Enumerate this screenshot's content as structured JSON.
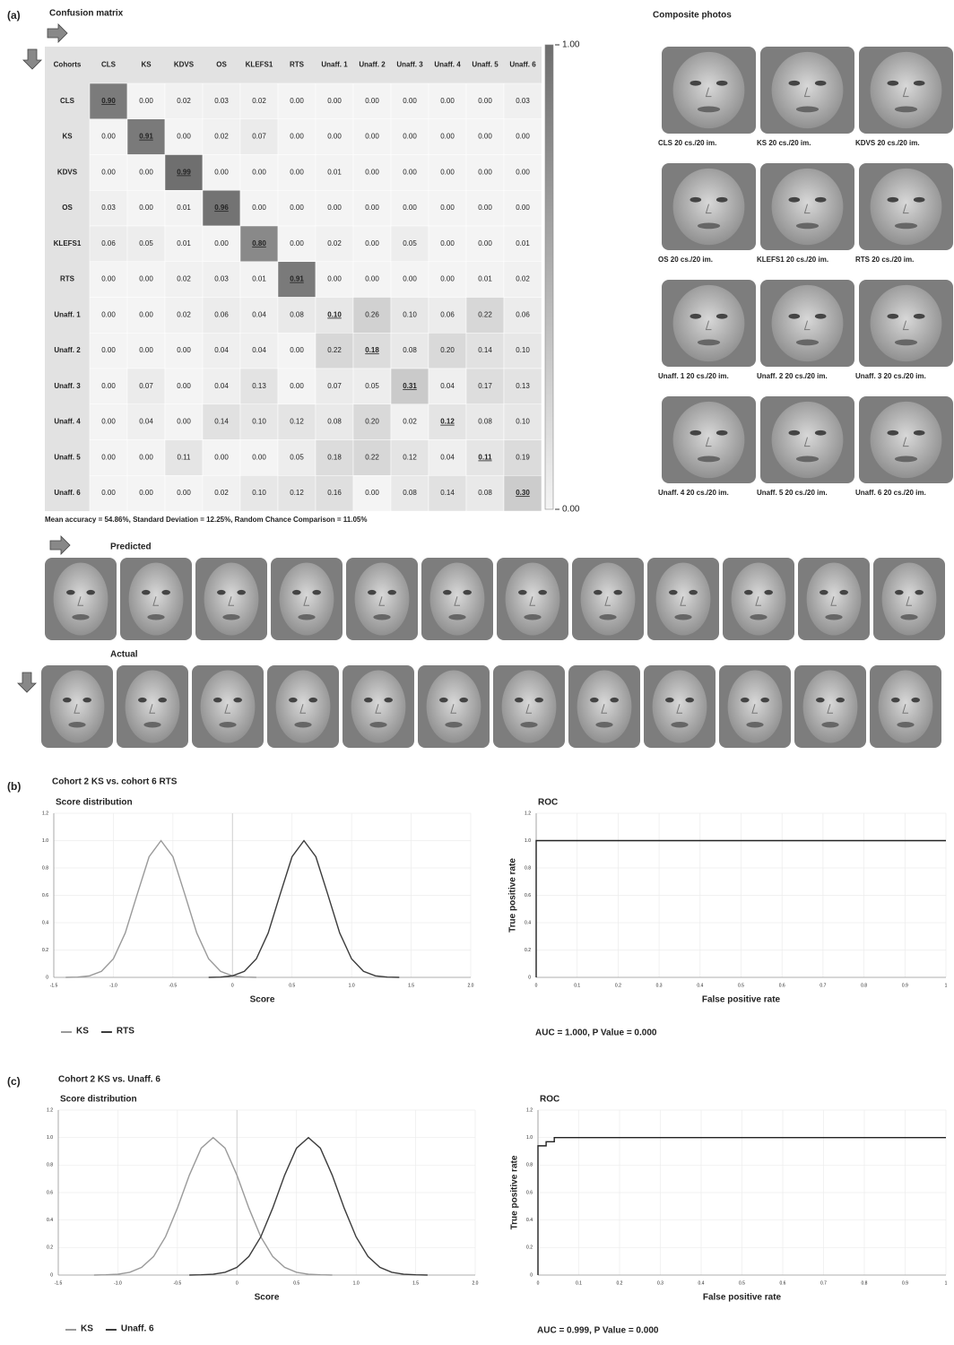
{
  "panel_labels": [
    "(a)",
    "(b)",
    "(c)"
  ],
  "comparisons": [
    "Cohort 2 KS vs. cohort 6 RTS",
    "Cohort 2 KS vs. Unaff. 6"
  ],
  "composite_photos": {
    "title": "Composite photos",
    "captions": [
      "CLS 20 cs./20 im.",
      "KS 20 cs./20 im.",
      "KDVS 20 cs./20 im.",
      "OS 20 cs./20 im.",
      "KLEFS1 20 cs./20 im.",
      "RTS 20 cs./20 im.",
      "Unaff. 1 20 cs./20 im.",
      "Unaff. 2 20 cs./20 im.",
      "Unaff. 3 20 cs./20 im.",
      "Unaff. 4 20 cs./20 im.",
      "Unaff. 5 20 cs./20 im.",
      "Unaff. 6 20 cs./20 im."
    ]
  },
  "faces": {
    "predicted_label": "Predicted",
    "actual_label": "Actual"
  },
  "chart_data": [
    {
      "type": "heatmap",
      "title": "Confusion matrix",
      "corner_label": "Cohorts",
      "categories": [
        "CLS",
        "KS",
        "KDVS",
        "OS",
        "KLEFS1",
        "RTS",
        "Unaff. 1",
        "Unaff. 2",
        "Unaff. 3",
        "Unaff. 4",
        "Unaff. 5",
        "Unaff. 6"
      ],
      "values": [
        [
          0.9,
          0,
          0.02,
          0.03,
          0.02,
          0,
          0,
          0,
          0,
          0,
          0,
          0.03
        ],
        [
          0,
          0.91,
          0,
          0.02,
          0.07,
          0,
          0,
          0,
          0,
          0,
          0,
          0
        ],
        [
          0,
          0,
          0.99,
          0,
          0,
          0,
          0.01,
          0,
          0,
          0,
          0,
          0
        ],
        [
          0.03,
          0,
          0.01,
          0.96,
          0,
          0,
          0,
          0,
          0,
          0,
          0,
          0
        ],
        [
          0.06,
          0.05,
          0.01,
          0,
          0.8,
          0,
          0.02,
          0,
          0.05,
          0,
          0,
          0.01
        ],
        [
          0,
          0,
          0.02,
          0.03,
          0.01,
          0.91,
          0,
          0,
          0,
          0,
          0.01,
          0.02
        ],
        [
          0,
          0,
          0.02,
          0.06,
          0.04,
          0.08,
          0.1,
          0.26,
          0.1,
          0.06,
          0.22,
          0.06
        ],
        [
          0,
          0,
          0,
          0.04,
          0.04,
          0,
          0.22,
          0.18,
          0.08,
          0.2,
          0.14,
          0.1
        ],
        [
          0,
          0.07,
          0,
          0.04,
          0.13,
          0,
          0.07,
          0.05,
          0.31,
          0.04,
          0.17,
          0.13
        ],
        [
          0,
          0.04,
          0,
          0.14,
          0.1,
          0.12,
          0.08,
          0.2,
          0.02,
          0.12,
          0.08,
          0.1
        ],
        [
          0,
          0,
          0.11,
          0,
          0,
          0.05,
          0.18,
          0.22,
          0.12,
          0.04,
          0.11,
          0.19
        ],
        [
          0,
          0,
          0,
          0.02,
          0.1,
          0.12,
          0.16,
          0,
          0.08,
          0.14,
          0.08,
          0.3
        ]
      ],
      "value_labels": [
        [
          "0.90",
          "0.00",
          "0.02",
          "0.03",
          "0.02",
          "0.00",
          "0.00",
          "0.00",
          "0.00",
          "0.00",
          "0.00",
          "0.03"
        ],
        [
          "0.00",
          "0.91",
          "0.00",
          "0.02",
          "0.07",
          "0.00",
          "0.00",
          "0.00",
          "0.00",
          "0.00",
          "0.00",
          "0.00"
        ],
        [
          "0.00",
          "0.00",
          "0.99",
          "0.00",
          "0.00",
          "0.00",
          "0.01",
          "0.00",
          "0.00",
          "0.00",
          "0.00",
          "0.00"
        ],
        [
          "0.03",
          "0.00",
          "0.01",
          "0.96",
          "0.00",
          "0.00",
          "0.00",
          "0.00",
          "0.00",
          "0.00",
          "0.00",
          "0.00"
        ],
        [
          "0.06",
          "0.05",
          "0.01",
          "0.00",
          "0.80",
          "0.00",
          "0.02",
          "0.00",
          "0.05",
          "0.00",
          "0.00",
          "0.01"
        ],
        [
          "0.00",
          "0.00",
          "0.02",
          "0.03",
          "0.01",
          "0.91",
          "0.00",
          "0.00",
          "0.00",
          "0.00",
          "0.01",
          "0.02"
        ],
        [
          "0.00",
          "0.00",
          "0.02",
          "0.06",
          "0.04",
          "0.08",
          "0.10",
          "0.26",
          "0.10",
          "0.06",
          "0.22",
          "0.06"
        ],
        [
          "0.00",
          "0.00",
          "0.00",
          "0.04",
          "0.04",
          "0.00",
          "0.22",
          "0.18",
          "0.08",
          "0.20",
          "0.14",
          "0.10"
        ],
        [
          "0.00",
          "0.07",
          "0.00",
          "0.04",
          "0.13",
          "0.00",
          "0.07",
          "0.05",
          "0.31",
          "0.04",
          "0.17",
          "0.13"
        ],
        [
          "0.00",
          "0.04",
          "0.00",
          "0.14",
          "0.10",
          "0.12",
          "0.08",
          "0.20",
          "0.02",
          "0.12",
          "0.08",
          "0.10"
        ],
        [
          "0.00",
          "0.00",
          "0.11",
          "0.00",
          "0.00",
          "0.05",
          "0.18",
          "0.22",
          "0.12",
          "0.04",
          "0.11",
          "0.19"
        ],
        [
          "0.00",
          "0.00",
          "0.00",
          "0.02",
          "0.10",
          "0.12",
          "0.16",
          "0.00",
          "0.08",
          "0.14",
          "0.08",
          "0.30"
        ]
      ],
      "clim": [
        0,
        1
      ],
      "colorbar_ticks": [
        {
          "value": 1,
          "label": "1.00"
        },
        {
          "value": 0,
          "label": "0.00"
        }
      ],
      "colors": [
        "#f4f4f4",
        "#6e6e6e"
      ],
      "note": "Mean accuracy = 54.86%, Standard Deviation = 12.25%, Random Chance Comparison = 11.05%"
    },
    {
      "type": "line",
      "title": "Score distribution",
      "xlabel": "Score",
      "x": [
        -1.4,
        -1.3,
        -1.2,
        -1.1,
        -1.0,
        -0.9,
        -0.8,
        -0.7,
        -0.6,
        -0.5,
        -0.4,
        -0.3,
        -0.2,
        -0.1,
        0,
        0.1,
        0.2,
        0.3,
        0.4,
        0.5,
        0.6,
        0.7,
        0.8,
        0.9,
        1.0,
        1.1,
        1.2,
        1.3,
        1.4
      ],
      "series": [
        {
          "name": "KS",
          "color": "#9a9a9a",
          "values": [
            0.0,
            0.002,
            0.011,
            0.044,
            0.135,
            0.325,
            0.607,
            0.882,
            1,
            0.882,
            0.607,
            0.325,
            0.135,
            0.044,
            0.011,
            0.002,
            0.0,
            null,
            null,
            null,
            null,
            null,
            null,
            null,
            null,
            null,
            null,
            null,
            null
          ]
        },
        {
          "name": "RTS",
          "color": "#3c3c3c",
          "values": [
            null,
            null,
            null,
            null,
            null,
            null,
            null,
            null,
            null,
            null,
            null,
            null,
            0.0,
            0.002,
            0.011,
            0.044,
            0.135,
            0.325,
            0.607,
            0.882,
            1,
            0.882,
            0.607,
            0.325,
            0.135,
            0.044,
            0.011,
            0.002,
            0.0
          ]
        }
      ],
      "xlim": [
        -1.5,
        2.0
      ],
      "xticks": [
        -1.5,
        {
          "value": -1,
          "label": "-1.0"
        },
        -0.5,
        0,
        0.5,
        {
          "value": 1,
          "label": "1.0"
        },
        1.5,
        {
          "value": 2,
          "label": "2.0"
        }
      ],
      "ylim": [
        0,
        1.2
      ],
      "yticks": [
        0,
        0.2,
        0.4,
        0.6,
        0.8,
        {
          "value": 1,
          "label": "1.0"
        },
        1.2
      ],
      "grid": true,
      "legend": "bottom"
    },
    {
      "type": "line",
      "title": "ROC",
      "xlabel": "False positive rate",
      "ylabel": "True positive rate",
      "x": [
        0,
        0,
        1
      ],
      "series": [
        {
          "color": "#222222",
          "values": [
            0,
            1,
            1
          ]
        }
      ],
      "xlim": [
        0,
        1
      ],
      "xticks": [
        0,
        0.1,
        0.2,
        0.3,
        0.4,
        0.5,
        0.6,
        0.7,
        0.8,
        0.9,
        1
      ],
      "ylim": [
        0,
        1.2
      ],
      "yticks": [
        0,
        0.2,
        0.4,
        0.6,
        0.8,
        {
          "value": 1,
          "label": "1.0"
        },
        1.2
      ],
      "grid": true,
      "annotation": "AUC =  1.000, P Value = 0.000"
    },
    {
      "type": "line",
      "title": "Score distribution",
      "xlabel": "Score",
      "x": [
        -1.2,
        -1.1,
        -1.0,
        -0.9,
        -0.8,
        -0.7,
        -0.6,
        -0.5,
        -0.4,
        -0.3,
        -0.2,
        -0.1,
        0,
        0.1,
        0.2,
        0.3,
        0.4,
        0.5,
        0.6,
        0.7,
        0.8,
        0.9,
        1.0,
        1.1,
        1.2,
        1.3,
        1.4,
        1.5,
        1.6
      ],
      "series": [
        {
          "name": "KS",
          "color": "#9a9a9a",
          "values": [
            0.0,
            0.002,
            0.006,
            0.02,
            0.056,
            0.135,
            0.278,
            0.487,
            0.726,
            0.923,
            1,
            0.923,
            0.726,
            0.487,
            0.278,
            0.135,
            0.056,
            0.02,
            0.006,
            0.002,
            0.0,
            null,
            null,
            null,
            null,
            null,
            null,
            null,
            null
          ]
        },
        {
          "name": "Unaff. 6",
          "color": "#3c3c3c",
          "values": [
            null,
            null,
            null,
            null,
            null,
            null,
            null,
            null,
            0.0,
            0.002,
            0.006,
            0.02,
            0.056,
            0.135,
            0.278,
            0.487,
            0.726,
            0.923,
            1,
            0.923,
            0.726,
            0.487,
            0.278,
            0.135,
            0.056,
            0.02,
            0.006,
            0.002,
            0.0
          ]
        }
      ],
      "xlim": [
        -1.5,
        2.0
      ],
      "xticks": [
        -1.5,
        {
          "value": -1,
          "label": "-1.0"
        },
        -0.5,
        0,
        0.5,
        {
          "value": 1,
          "label": "1.0"
        },
        1.5,
        {
          "value": 2,
          "label": "2.0"
        }
      ],
      "ylim": [
        0,
        1.2
      ],
      "yticks": [
        0,
        0.2,
        0.4,
        0.6,
        0.8,
        {
          "value": 1,
          "label": "1.0"
        },
        1.2
      ],
      "grid": true,
      "legend": "bottom"
    },
    {
      "type": "line",
      "title": "ROC",
      "xlabel": "False positive rate",
      "ylabel": "True positive rate",
      "x": [
        0,
        0,
        0.02,
        0.02,
        0.04,
        0.04,
        1
      ],
      "series": [
        {
          "color": "#222222",
          "values": [
            0,
            0.94,
            0.94,
            0.97,
            0.97,
            1,
            1
          ]
        }
      ],
      "xlim": [
        0,
        1
      ],
      "xticks": [
        0,
        0.1,
        0.2,
        0.3,
        0.4,
        0.5,
        0.6,
        0.7,
        0.8,
        0.9,
        1
      ],
      "ylim": [
        0,
        1.2
      ],
      "yticks": [
        0,
        0.2,
        0.4,
        0.6,
        0.8,
        {
          "value": 1,
          "label": "1.0"
        },
        1.2
      ],
      "grid": true,
      "annotation": "AUC =  0.999, P Value = 0.000"
    }
  ]
}
